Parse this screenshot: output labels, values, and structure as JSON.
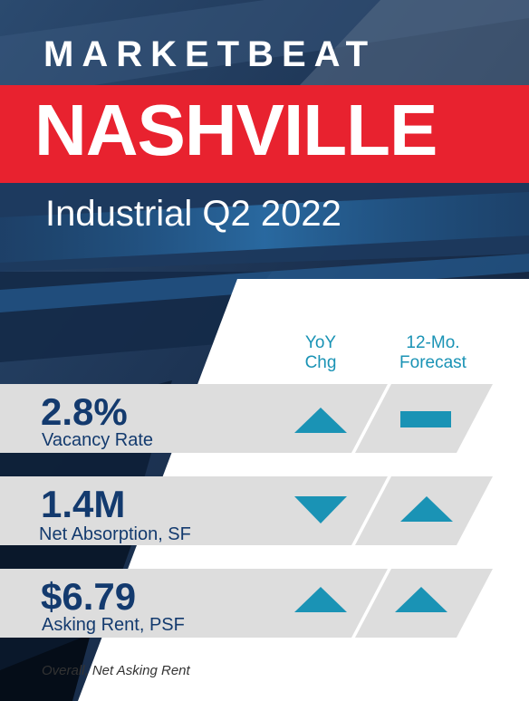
{
  "header": {
    "brand": "MARKETBEAT",
    "city": "NASHVILLE",
    "report_title": "Industrial Q2 2022"
  },
  "columns": {
    "yoy": [
      "YoY",
      "Chg"
    ],
    "forecast": [
      "12-Mo.",
      "Forecast"
    ]
  },
  "metrics": [
    {
      "value": "2.8%",
      "label": "Vacancy Rate",
      "yoy": "up",
      "forecast": "flat"
    },
    {
      "value": "1.4M",
      "label": "Net Absorption, SF",
      "yoy": "down",
      "forecast": "up"
    },
    {
      "value": "$6.79",
      "label": "Asking Rent, PSF",
      "yoy": "up",
      "forecast": "up"
    }
  ],
  "footnote": "Overall, Net Asking Rent",
  "colors": {
    "red": "#e8222f",
    "navy": "#133a6e",
    "teal": "#1a93b5",
    "panel_gray": "#dddddd"
  }
}
